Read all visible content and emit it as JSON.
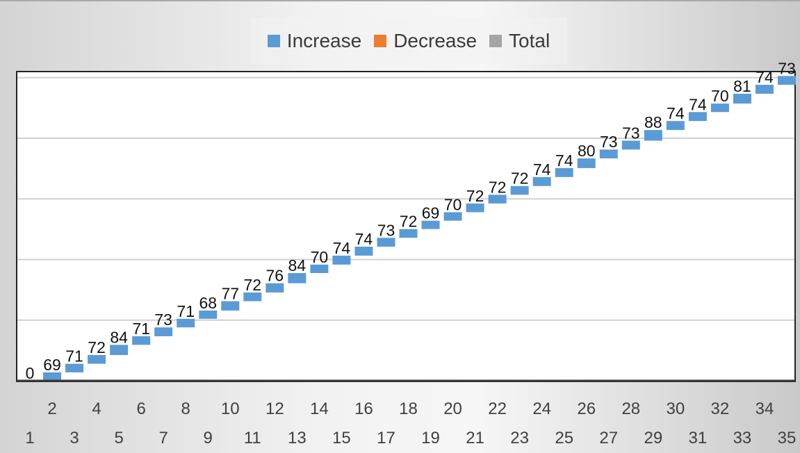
{
  "legend": {
    "items": [
      {
        "label": "Increase",
        "color": "#5B9BD5"
      },
      {
        "label": "Decrease",
        "color": "#ED7D31"
      },
      {
        "label": "Total",
        "color": "#A5A5A5"
      }
    ]
  },
  "chart_data": {
    "type": "waterfall",
    "title": "",
    "xlabel": "",
    "ylabel": "",
    "categories": [
      "1",
      "2",
      "3",
      "4",
      "5",
      "6",
      "7",
      "8",
      "9",
      "10",
      "11",
      "12",
      "13",
      "14",
      "15",
      "16",
      "17",
      "18",
      "19",
      "20",
      "21",
      "22",
      "23",
      "24",
      "25",
      "26",
      "27",
      "28",
      "29",
      "30",
      "31",
      "32",
      "33",
      "34",
      "35"
    ],
    "values": [
      0,
      69,
      71,
      72,
      84,
      71,
      73,
      71,
      68,
      77,
      72,
      76,
      84,
      70,
      74,
      74,
      73,
      72,
      69,
      70,
      72,
      72,
      72,
      74,
      74,
      80,
      73,
      73,
      88,
      74,
      74,
      70,
      81,
      74,
      73
    ],
    "colors": {
      "increase": "#5B9BD5",
      "decrease": "#ED7D31",
      "total": "#A5A5A5"
    },
    "ylim": [
      0,
      2550
    ],
    "y_gridlines": [
      0,
      500,
      1000,
      1500,
      2000,
      2500
    ],
    "grid": true,
    "legend_position": "top"
  }
}
